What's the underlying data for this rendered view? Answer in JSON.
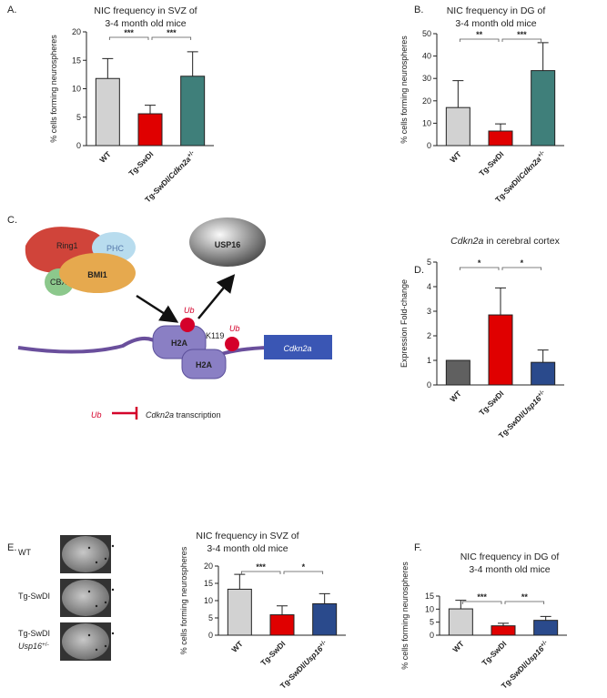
{
  "chart_data": [
    {
      "type": "bar",
      "label": "A.",
      "title": [
        "NIC frequency in SVZ of",
        "3-4 month old mice"
      ],
      "ylabel": "% cells forming neurospheres",
      "categories": [
        "WT",
        "Tg-SwDI",
        "Tg-SwDI/Cdkn2a+/-"
      ],
      "values": [
        11.8,
        5.6,
        12.2
      ],
      "errors": [
        3.5,
        1.5,
        4.3
      ],
      "colors": [
        "#d2d2d2",
        "#e00000",
        "#3f7f7a"
      ],
      "ylim": [
        0,
        20
      ],
      "yticks": [
        0,
        5,
        10,
        15,
        20
      ],
      "significance": [
        "***",
        "***"
      ]
    },
    {
      "type": "bar",
      "label": "B.",
      "title": [
        "NIC frequency in DG of",
        "3-4 month old mice"
      ],
      "ylabel": "% cells forming neurospheres",
      "categories": [
        "WT",
        "Tg-SwDI",
        "Tg-SwDI/Cdkn2a+/-"
      ],
      "values": [
        17,
        6.5,
        33.5
      ],
      "errors": [
        12,
        3.2,
        12.5
      ],
      "colors": [
        "#d2d2d2",
        "#e00000",
        "#3f7f7a"
      ],
      "ylim": [
        0,
        50
      ],
      "yticks": [
        0,
        10,
        20,
        30,
        40,
        50
      ],
      "significance": [
        "**",
        "***"
      ]
    },
    {
      "type": "bar",
      "label": "D.",
      "title_italic": "Cdkn2a",
      "title": [
        "in cerebral cortex"
      ],
      "ylabel": "Expression Fold-change",
      "categories": [
        "WT",
        "Tg-SwDI",
        "Tg-SwDI/Usp16+/-"
      ],
      "values": [
        1.0,
        2.85,
        0.92
      ],
      "errors": [
        0,
        1.1,
        0.5
      ],
      "colors": [
        "#606060",
        "#e00000",
        "#2a4a8c"
      ],
      "ylim": [
        0,
        5
      ],
      "yticks": [
        0,
        1,
        2,
        3,
        4,
        5
      ],
      "significance": [
        "*",
        "*"
      ]
    },
    {
      "type": "bar",
      "label": "E.",
      "title": [
        "NIC frequency in SVZ of",
        "3-4 month old mice"
      ],
      "ylabel": "% cells forming neurospheres",
      "categories": [
        "WT",
        "Tg-SwDI",
        "Tg-SwDI/Usp16+/-"
      ],
      "values": [
        13.3,
        5.9,
        9.1
      ],
      "errors": [
        4.3,
        2.6,
        2.9
      ],
      "colors": [
        "#d2d2d2",
        "#e00000",
        "#2a4a8c"
      ],
      "ylim": [
        0,
        20
      ],
      "yticks": [
        0,
        5,
        10,
        15,
        20
      ],
      "significance": [
        "***",
        "*"
      ],
      "images": [
        [
          "WT"
        ],
        [
          "Tg-SwDI"
        ],
        [
          "Tg-SwDI",
          "Usp16+/-"
        ]
      ]
    },
    {
      "type": "bar",
      "label": "F.",
      "title": [
        "NIC frequency in DG of",
        "3-4 month old mice"
      ],
      "ylabel": "% cells forming neurospheres",
      "categories": [
        "WT",
        "Tg-SwDI",
        "Tg-SwDI/Usp16+/-"
      ],
      "values": [
        10.1,
        3.6,
        5.7
      ],
      "errors": [
        3.3,
        1.0,
        1.5
      ],
      "colors": [
        "#d2d2d2",
        "#e00000",
        "#2a4a8c"
      ],
      "ylim": [
        0,
        15
      ],
      "yticks": [
        0,
        5,
        10,
        15
      ],
      "significance": [
        "***",
        "**"
      ]
    }
  ],
  "diagram": {
    "label": "C.",
    "ring1": "Ring1",
    "phc": "PHC",
    "bmi1": "BMI1",
    "cbx": "CBX",
    "usp16": "USP16",
    "ub1": "Ub",
    "k119": "K119",
    "ub2": "Ub",
    "h2a1": "H2A",
    "h2a2": "H2A",
    "gene": "Cdkn2a",
    "inhibit_ub": "Ub",
    "inhibit_gene": "Cdkn2a",
    "inhibit_text": "transcription"
  }
}
